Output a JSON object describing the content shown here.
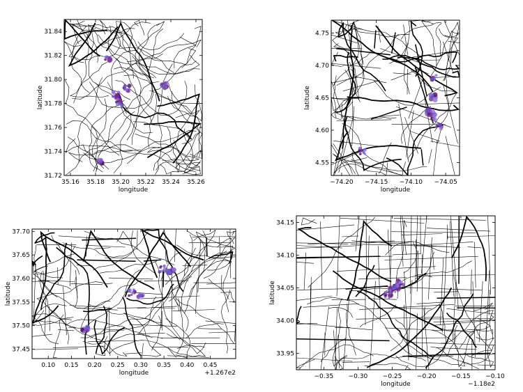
{
  "figure": {
    "background": "#ffffff",
    "road_color": "#000000",
    "hotspot_colors": [
      "#4b0a5c",
      "#7b2f9a",
      "#8e6fd6",
      "#6c5bd0"
    ]
  },
  "chart_data": [
    {
      "type": "scatter",
      "xlabel": "longitude",
      "ylabel": "latitude",
      "xlim": [
        35.155,
        35.265
      ],
      "ylim": [
        31.72,
        31.85
      ],
      "xticks": [
        35.16,
        35.18,
        35.2,
        35.22,
        35.24,
        35.26
      ],
      "xtick_labels": [
        "35.16",
        "35.18",
        "35.20",
        "35.22",
        "35.24",
        "35.26"
      ],
      "yticks": [
        31.72,
        31.74,
        31.76,
        31.78,
        31.8,
        31.82,
        31.84
      ],
      "ytick_labels": [
        "31.72",
        "31.74",
        "31.76",
        "31.78",
        "31.80",
        "31.82",
        "31.84"
      ],
      "x_offset_label": "",
      "grid": false,
      "hotspots": [
        {
          "x": 35.19,
          "y": 31.817,
          "weight": 0.8
        },
        {
          "x": 35.196,
          "y": 31.787,
          "weight": 1.0
        },
        {
          "x": 35.199,
          "y": 31.781,
          "weight": 0.8
        },
        {
          "x": 35.205,
          "y": 31.793,
          "weight": 0.6
        },
        {
          "x": 35.235,
          "y": 31.795,
          "weight": 0.8
        },
        {
          "x": 35.184,
          "y": 31.731,
          "weight": 0.8
        }
      ]
    },
    {
      "type": "scatter",
      "xlabel": "longitude",
      "ylabel": "latitude",
      "xlim": [
        -74.215,
        -74.03
      ],
      "ylim": [
        4.53,
        4.77
      ],
      "xticks": [
        -74.2,
        -74.15,
        -74.1,
        -74.05
      ],
      "xtick_labels": [
        "−74.20",
        "−74.15",
        "−74.10",
        "−74.05"
      ],
      "yticks": [
        4.55,
        4.6,
        4.65,
        4.7,
        4.75
      ],
      "ytick_labels": [
        "4.55",
        "4.60",
        "4.65",
        "4.70",
        "4.75"
      ],
      "x_offset_label": "",
      "grid": false,
      "hotspots": [
        {
          "x": -74.068,
          "y": 4.65,
          "weight": 0.8
        },
        {
          "x": -74.072,
          "y": 4.63,
          "weight": 1.0
        },
        {
          "x": -74.07,
          "y": 4.62,
          "weight": 0.9
        },
        {
          "x": -74.06,
          "y": 4.607,
          "weight": 0.5
        },
        {
          "x": -74.068,
          "y": 4.68,
          "weight": 0.4
        },
        {
          "x": -74.17,
          "y": 4.568,
          "weight": 0.6
        }
      ]
    },
    {
      "type": "scatter",
      "xlabel": "longitude",
      "ylabel": "latitude",
      "xlim": [
        0.065,
        0.505
      ],
      "ylim": [
        37.43,
        37.705
      ],
      "xticks": [
        0.1,
        0.15,
        0.2,
        0.25,
        0.3,
        0.35,
        0.4,
        0.45
      ],
      "xtick_labels": [
        "0.10",
        "0.15",
        "0.20",
        "0.25",
        "0.30",
        "0.35",
        "0.40",
        "0.45"
      ],
      "yticks": [
        37.45,
        37.5,
        37.55,
        37.6,
        37.65,
        37.7
      ],
      "ytick_labels": [
        "37.45",
        "37.50",
        "37.55",
        "37.60",
        "37.65",
        "37.70"
      ],
      "x_offset_label": "+1.267e2",
      "grid": false,
      "hotspots": [
        {
          "x": 0.365,
          "y": 37.615,
          "weight": 1.0
        },
        {
          "x": 0.28,
          "y": 37.57,
          "weight": 0.9
        },
        {
          "x": 0.3,
          "y": 37.565,
          "weight": 0.6
        },
        {
          "x": 0.18,
          "y": 37.492,
          "weight": 0.9
        },
        {
          "x": 0.345,
          "y": 37.62,
          "weight": 0.3
        }
      ]
    },
    {
      "type": "scatter",
      "xlabel": "longitude",
      "ylabel": "latitude",
      "xlim": [
        -0.39,
        -0.1
      ],
      "ylim": [
        33.925,
        34.16
      ],
      "xticks": [
        -0.35,
        -0.3,
        -0.25,
        -0.2,
        -0.15,
        -0.1
      ],
      "xtick_labels": [
        "−0.35",
        "−0.30",
        "−0.25",
        "−0.20",
        "−0.15",
        "−0.10"
      ],
      "yticks": [
        33.95,
        34.0,
        34.05,
        34.1,
        34.15
      ],
      "ytick_labels": [
        "33.95",
        "34.00",
        "34.05",
        "34.10",
        "34.15"
      ],
      "x_offset_label": "−1.18e2",
      "grid": false,
      "hotspots": [
        {
          "x": -0.25,
          "y": 34.048,
          "weight": 1.0
        },
        {
          "x": -0.243,
          "y": 34.052,
          "weight": 0.9
        },
        {
          "x": -0.257,
          "y": 34.04,
          "weight": 0.8
        },
        {
          "x": -0.238,
          "y": 34.058,
          "weight": 0.5
        }
      ]
    }
  ]
}
